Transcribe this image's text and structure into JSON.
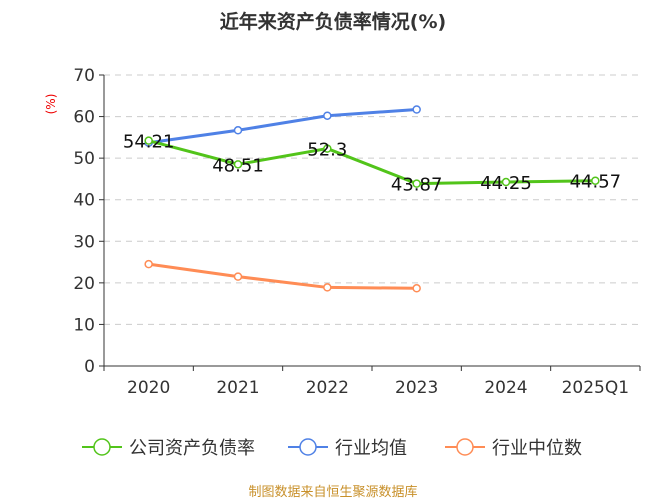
{
  "chart_data": {
    "type": "line",
    "title": "近年来资产负债率情况(%)",
    "ylabel": "(%)",
    "categories": [
      "2020",
      "2021",
      "2022",
      "2023",
      "2024",
      "2025Q1"
    ],
    "ylim": [
      0,
      70
    ],
    "yticks": [
      0,
      10,
      20,
      30,
      40,
      50,
      60,
      70
    ],
    "grid": true,
    "legend_position": "bottom",
    "series": [
      {
        "name": "公司资产负债率",
        "color": "#52c41a",
        "values": [
          54.21,
          48.51,
          52.3,
          43.87,
          44.25,
          44.57
        ],
        "labels": [
          "54.21",
          "48.51",
          "52.3",
          "43.87",
          "44.25",
          "44.57"
        ]
      },
      {
        "name": "行业均值",
        "color": "#4f81e6",
        "values": [
          53.7,
          56.7,
          60.2,
          61.7,
          null,
          null
        ]
      },
      {
        "name": "行业中位数",
        "color": "#ff8c55",
        "values": [
          24.5,
          21.5,
          18.9,
          18.7,
          null,
          null
        ]
      }
    ]
  },
  "footer": "制图数据来自恒生聚源数据库"
}
